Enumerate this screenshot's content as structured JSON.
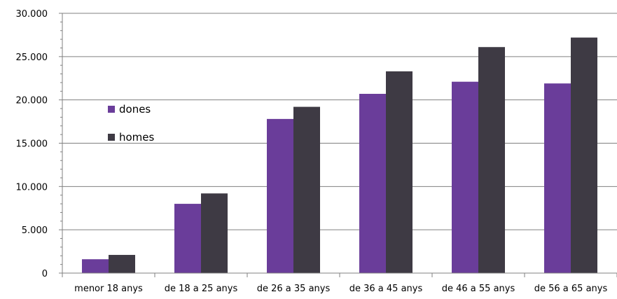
{
  "chart_data": {
    "type": "bar",
    "categories": [
      "menor 18 anys",
      "de 18 a 25 anys",
      "de 26 a 35 anys",
      "de 36 a 45 anys",
      "de 46 a 55 anys",
      "de 56 a 65 anys"
    ],
    "series": [
      {
        "name": "dones",
        "color": "#6a3d9a",
        "values": [
          1600,
          8000,
          17800,
          20700,
          22100,
          21900
        ]
      },
      {
        "name": "homes",
        "color": "#3e3a44",
        "values": [
          2100,
          9200,
          19200,
          23300,
          26100,
          27200
        ]
      }
    ],
    "ylim": [
      0,
      30000
    ],
    "ytick_labels": [
      "0",
      "5.000",
      "10.000",
      "15.000",
      "20.000",
      "25.000",
      "30.000"
    ],
    "grid": "horizontal",
    "legend_position": "left"
  }
}
